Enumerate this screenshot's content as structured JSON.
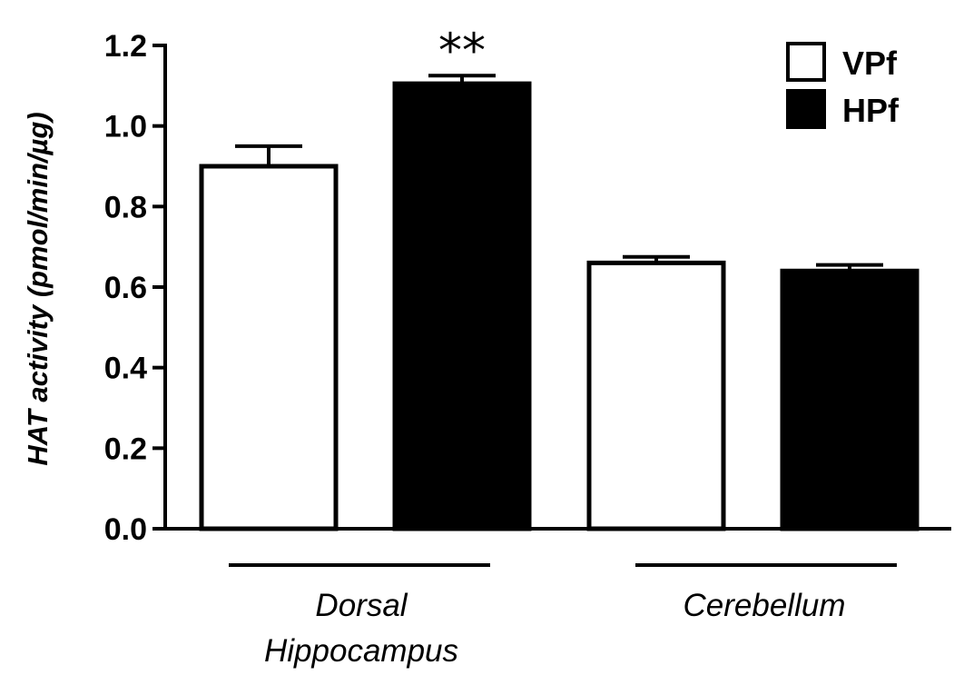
{
  "chart_data": {
    "type": "bar",
    "title": "",
    "ylabel": "HAT activity (pmol/min/µg)",
    "ylim": [
      0,
      1.2
    ],
    "yticks": [
      "0.0",
      "0.2",
      "0.4",
      "0.6",
      "0.8",
      "1.0",
      "1.2"
    ],
    "categories": [
      {
        "lines": [
          "Dorsal",
          "Hippocampus"
        ]
      },
      {
        "lines": [
          "Cerebellum"
        ]
      }
    ],
    "series": [
      {
        "name": "VPf",
        "fill": "#ffffff",
        "values": [
          0.9,
          0.66
        ],
        "errors": [
          0.05,
          0.015
        ]
      },
      {
        "name": "HPf",
        "fill": "#000000",
        "values": [
          1.105,
          0.64
        ],
        "errors": [
          0.02,
          0.015
        ]
      }
    ],
    "annotations": [
      {
        "text": "**",
        "category": 0,
        "series": 1
      }
    ],
    "legend": "top-right",
    "grid": false
  }
}
